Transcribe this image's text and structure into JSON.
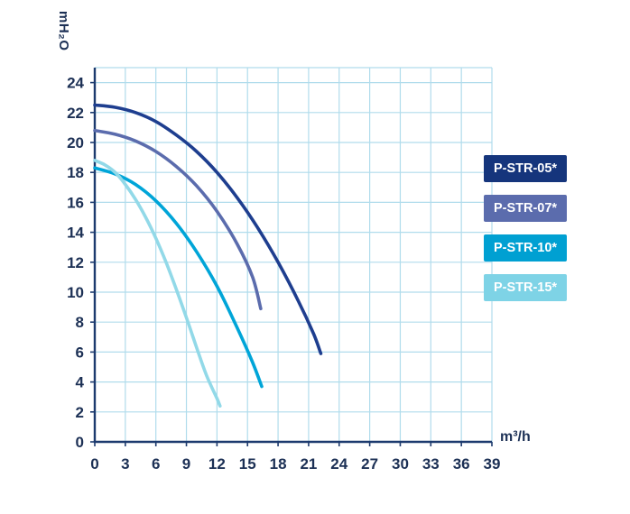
{
  "chart_data": {
    "type": "line",
    "title": "",
    "xlabel": "m³/h",
    "ylabel": "mH₂O",
    "xlim": [
      0,
      39
    ],
    "ylim": [
      0,
      25
    ],
    "x_ticks": [
      0,
      3,
      6,
      9,
      12,
      15,
      18,
      21,
      24,
      27,
      30,
      33,
      36,
      39
    ],
    "y_ticks": [
      0,
      2,
      4,
      6,
      8,
      10,
      12,
      14,
      16,
      18,
      20,
      22,
      24
    ],
    "x_grid": [
      3,
      6,
      9,
      12,
      15,
      18,
      21,
      24,
      27,
      30,
      33,
      36,
      39
    ],
    "y_grid": [
      2,
      4,
      6,
      8,
      10,
      12,
      14,
      16,
      18,
      20,
      22,
      24,
      25
    ],
    "grid": true,
    "grid_color": "#b0dcec",
    "axis_color": "#1c3a6e",
    "tick_color": "#1c3055",
    "legend_position": "right-overlay",
    "series": [
      {
        "name": "P-STR-05*",
        "color": "#1e3e8f",
        "legend_bg": "#15357c",
        "points": [
          [
            0,
            22.5
          ],
          [
            2,
            22.35
          ],
          [
            4,
            22.0
          ],
          [
            6,
            21.4
          ],
          [
            8,
            20.5
          ],
          [
            10,
            19.4
          ],
          [
            12,
            18.0
          ],
          [
            14,
            16.3
          ],
          [
            16,
            14.3
          ],
          [
            18,
            12.0
          ],
          [
            20,
            9.4
          ],
          [
            21.5,
            7.2
          ],
          [
            22.2,
            5.9
          ]
        ]
      },
      {
        "name": "P-STR-07*",
        "color": "#5b6cad",
        "legend_bg": "#5b6cad",
        "points": [
          [
            0,
            20.8
          ],
          [
            2,
            20.55
          ],
          [
            4,
            20.1
          ],
          [
            6,
            19.4
          ],
          [
            8,
            18.4
          ],
          [
            10,
            17.1
          ],
          [
            12,
            15.4
          ],
          [
            14,
            13.2
          ],
          [
            15.5,
            11.0
          ],
          [
            16.3,
            8.9
          ]
        ]
      },
      {
        "name": "P-STR-10*",
        "color": "#00a5d8",
        "legend_bg": "#00a0d2",
        "points": [
          [
            0,
            18.3
          ],
          [
            2,
            17.9
          ],
          [
            4,
            17.2
          ],
          [
            6,
            16.1
          ],
          [
            8,
            14.6
          ],
          [
            10,
            12.7
          ],
          [
            12,
            10.4
          ],
          [
            14,
            7.6
          ],
          [
            15.5,
            5.3
          ],
          [
            16.4,
            3.7
          ]
        ]
      },
      {
        "name": "P-STR-15*",
        "color": "#92d9e8",
        "legend_bg": "#7ed3e6",
        "points": [
          [
            0,
            18.8
          ],
          [
            1,
            18.5
          ],
          [
            2,
            18.0
          ],
          [
            3,
            17.2
          ],
          [
            4,
            16.2
          ],
          [
            5,
            15.0
          ],
          [
            6,
            13.6
          ],
          [
            7,
            12.0
          ],
          [
            8,
            10.2
          ],
          [
            9,
            8.3
          ],
          [
            10,
            6.3
          ],
          [
            11,
            4.4
          ],
          [
            12,
            2.9
          ],
          [
            12.3,
            2.4
          ]
        ]
      }
    ]
  }
}
